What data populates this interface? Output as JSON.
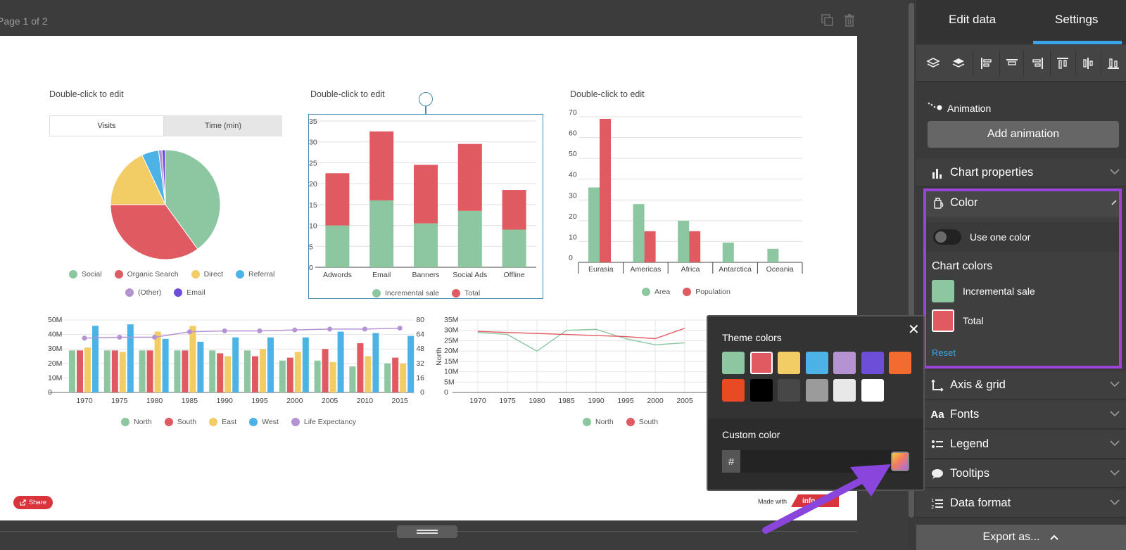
{
  "topbar": {
    "page_indicator": "Page 1 of 2"
  },
  "canvas": {
    "chart_titles": [
      "Double-click to edit",
      "Double-click to edit",
      "Double-click to edit"
    ],
    "share_label": "Share",
    "made_with": "Made with",
    "brand": "info"
  },
  "chart_data": [
    {
      "type": "pie",
      "tabs": [
        "Visits",
        "Time (min)"
      ],
      "active_tab": "Visits",
      "series": [
        {
          "name": "Social",
          "value": 40,
          "color": "#8cc7a2"
        },
        {
          "name": "Organic Search",
          "value": 35,
          "color": "#e05a62"
        },
        {
          "name": "Direct",
          "value": 18,
          "color": "#f2cc64"
        },
        {
          "name": "Referral",
          "value": 5,
          "color": "#4db3e6"
        },
        {
          "name": "(Other)",
          "value": 1,
          "color": "#b593d3"
        },
        {
          "name": "Email",
          "value": 1,
          "color": "#6c4ed8"
        }
      ]
    },
    {
      "type": "bar",
      "stacked": true,
      "categories": [
        "Adwords",
        "Email",
        "Banners",
        "Social Ads",
        "Offline"
      ],
      "series": [
        {
          "name": "Incremental sale",
          "values": [
            10,
            16,
            10.5,
            13.5,
            9
          ],
          "color": "#8cc7a2"
        },
        {
          "name": "Total",
          "values": [
            12.5,
            16.5,
            14,
            16,
            9.5
          ],
          "color": "#e05a62"
        }
      ],
      "ylim": [
        0,
        35
      ],
      "yticks": [
        "0",
        "5",
        "10",
        "15",
        "20",
        "25",
        "30",
        "35"
      ],
      "grid": true
    },
    {
      "type": "bar",
      "categories": [
        "Eurasia",
        "Americas",
        "Africa",
        "Antarctica",
        "Oceania"
      ],
      "series": [
        {
          "name": "Area",
          "values": [
            36,
            28,
            20,
            9.5,
            6.5
          ],
          "color": "#8cc7a2"
        },
        {
          "name": "Population",
          "values": [
            69,
            15,
            15,
            0,
            0
          ],
          "color": "#e05a62"
        }
      ],
      "ylim": [
        0,
        70
      ],
      "yticks": [
        "0",
        "10",
        "20",
        "30",
        "40",
        "50",
        "60",
        "70"
      ],
      "grid": true
    },
    {
      "type": "bar",
      "categories": [
        "1970",
        "1975",
        "1980",
        "1985",
        "1990",
        "1995",
        "2000",
        "2005",
        "2010",
        "2015"
      ],
      "series": [
        {
          "name": "North",
          "values": [
            29,
            29,
            29,
            29,
            29,
            29,
            22,
            22,
            18,
            20
          ],
          "color": "#8cc7a2"
        },
        {
          "name": "South",
          "values": [
            29,
            29,
            29,
            29,
            27,
            25,
            24,
            30,
            34,
            24
          ],
          "color": "#e05a62"
        },
        {
          "name": "East",
          "values": [
            31,
            28,
            42,
            46,
            25,
            30,
            28,
            21,
            25,
            20
          ],
          "color": "#f2cc64"
        },
        {
          "name": "West",
          "values": [
            46,
            47,
            37,
            35,
            38,
            38,
            38,
            42,
            41,
            39
          ],
          "color": "#4db3e6"
        }
      ],
      "line_series": {
        "name": "Life Expectancy",
        "values": [
          60,
          61,
          61,
          67,
          68,
          68,
          69,
          70,
          70,
          71
        ],
        "color": "#b593d3"
      },
      "ylim": [
        0,
        50
      ],
      "yticks": [
        "0",
        "10M",
        "20M",
        "30M",
        "40M",
        "50M"
      ],
      "y2lim": [
        0,
        80
      ],
      "y2ticks": [
        "0",
        "16",
        "32",
        "48",
        "64",
        "80"
      ],
      "grid": true
    },
    {
      "type": "line",
      "x": [
        "1970",
        "1975",
        "1980",
        "1985",
        "1990",
        "1995",
        "2000",
        "2005"
      ],
      "series": [
        {
          "name": "North",
          "values": [
            29,
            28,
            20,
            30,
            30.5,
            26,
            23,
            24
          ],
          "color": "#8cc7a2"
        },
        {
          "name": "South",
          "values": [
            29.5,
            29,
            28.5,
            28,
            27.5,
            27,
            26,
            31
          ],
          "color": "#e05a62"
        }
      ],
      "ylabel": "North",
      "ylim": [
        0,
        35
      ],
      "yticks": [
        "0",
        "5M",
        "10M",
        "15M",
        "20M",
        "25M",
        "30M",
        "35M"
      ],
      "grid": true
    }
  ],
  "popup": {
    "title": "Theme colors",
    "close": "✕",
    "theme_colors": [
      "#8cc7a2",
      "#e05a62",
      "#f2cc64",
      "#4db3e6",
      "#b593d3",
      "#6c4ed8",
      "#f36b2f",
      "#e84b23",
      "#000000",
      "#474747",
      "#9b9b9b",
      "#e8e8e8",
      "#ffffff"
    ],
    "custom_title": "Custom color",
    "hash": "#",
    "custom_value": ""
  },
  "panel": {
    "tab_edit": "Edit data",
    "tab_settings": "Settings",
    "animation_label": "Animation",
    "add_animation": "Add animation",
    "chart_properties": "Chart properties",
    "color": "Color",
    "use_one_color": "Use one color",
    "chart_colors": "Chart colors",
    "series_colors": [
      {
        "name": "Incremental sale",
        "color": "#8cc7a2"
      },
      {
        "name": "Total",
        "color": "#e05a62"
      }
    ],
    "reset": "Reset",
    "axis_grid": "Axis & grid",
    "fonts": "Fonts",
    "legend": "Legend",
    "tooltips": "Tooltips",
    "data_format": "Data format",
    "export": "Export as..."
  }
}
